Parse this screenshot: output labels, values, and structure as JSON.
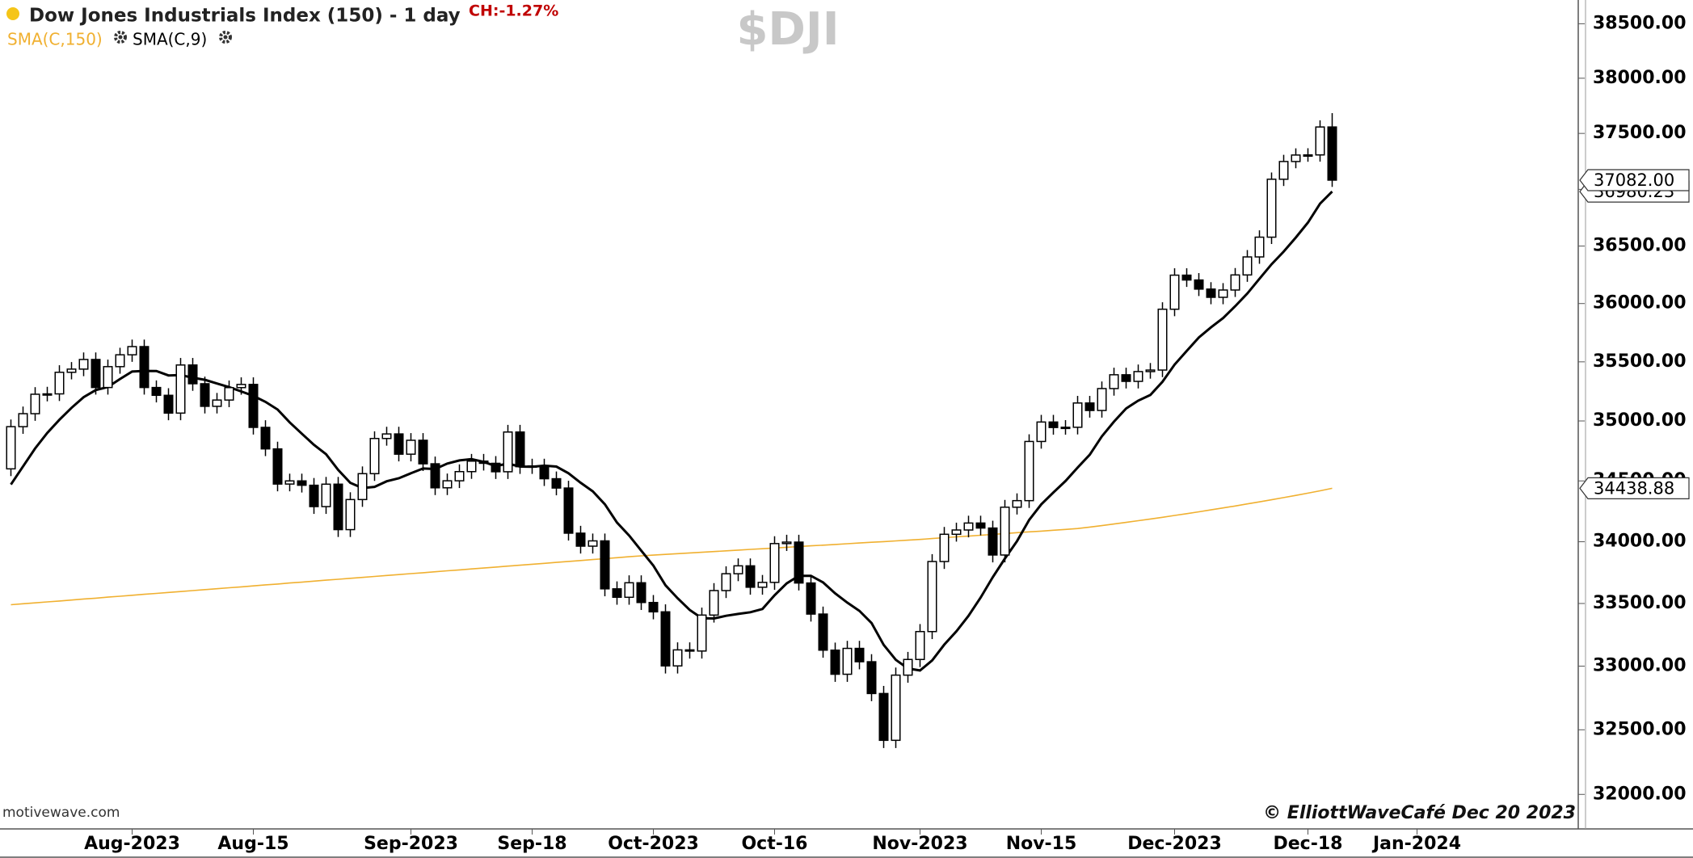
{
  "chart_data": {
    "type": "candlestick",
    "title": "Dow Jones Industrials Index (150) - 1 day",
    "change_label": "CH:-1.27%",
    "symbol": "$DJI",
    "source": "motivewave.com",
    "credit": "© ElliottWaveCafé Dec 20 2023",
    "log_scale": true,
    "up_color": "#ffffff",
    "down_color": "#000000",
    "open": [
      34600,
      34952,
      35061,
      35225,
      35228,
      35411,
      35438,
      35520,
      35282,
      35459,
      35560,
      35630,
      35282,
      35216,
      35066,
      35473,
      35314,
      35123,
      35176,
      35281,
      35308,
      34946,
      34766,
      34474,
      34500,
      34464,
      34288,
      34473,
      34099,
      34346,
      34560,
      34853,
      34891,
      34722,
      34838,
      34642,
      34443,
      34501,
      34577,
      34664,
      34646,
      34576,
      34907,
      34618,
      34624,
      34518,
      34441,
      34070,
      33964,
      34007,
      33618,
      33550,
      33667,
      33508,
      33433,
      33002,
      33129,
      33120,
      33407,
      33604,
      33740,
      33804,
      33631,
      33670,
      33985,
      33997,
      33665,
      33415,
      33127,
      32936,
      33141,
      33035,
      32784,
      32418,
      32929,
      33053,
      33275,
      33839,
      34061,
      34096,
      34153,
      34112,
      33892,
      34283,
      34337,
      34828,
      34991,
      34945,
      34947,
      35151,
      35088,
      35273,
      35390,
      35334,
      35417,
      35430,
      35951,
      36246,
      36204,
      36125,
      36054,
      36117,
      36248,
      36405,
      36578,
      37090,
      37248,
      37306,
      37307,
      37558
    ],
    "high": [
      35012,
      35121,
      35285,
      35288,
      35471,
      35498,
      35580,
      35580,
      35519,
      35620,
      35690,
      35690,
      35342,
      35276,
      35533,
      35533,
      35374,
      35236,
      35341,
      35368,
      35368,
      35006,
      34826,
      34560,
      34560,
      34524,
      34533,
      34533,
      34406,
      34620,
      34913,
      34951,
      34951,
      34898,
      34898,
      34702,
      34561,
      34637,
      34724,
      34724,
      34706,
      34967,
      34967,
      34684,
      34684,
      34578,
      34501,
      34130,
      34067,
      34067,
      33678,
      33727,
      33727,
      33568,
      33493,
      33189,
      33189,
      33467,
      33664,
      33800,
      33864,
      33864,
      33730,
      34045,
      34057,
      34057,
      33725,
      33475,
      33187,
      33201,
      33201,
      33095,
      32844,
      32989,
      33113,
      33335,
      33899,
      34121,
      34156,
      34213,
      34213,
      34172,
      34343,
      34397,
      34888,
      35051,
      35051,
      35007,
      35211,
      35211,
      35333,
      35450,
      35450,
      35477,
      35490,
      36011,
      36306,
      36306,
      36264,
      36185,
      36177,
      36308,
      36465,
      36638,
      37150,
      37308,
      37366,
      37367,
      37618,
      37683
    ],
    "low": [
      34540,
      34892,
      35001,
      35165,
      35168,
      35351,
      35378,
      35222,
      35222,
      35399,
      35500,
      35222,
      35156,
      35006,
      35006,
      35254,
      35063,
      35063,
      35116,
      35221,
      34886,
      34706,
      34414,
      34414,
      34404,
      34228,
      34228,
      34039,
      34039,
      34286,
      34500,
      34793,
      34662,
      34662,
      34582,
      34383,
      34383,
      34441,
      34517,
      34586,
      34516,
      34516,
      34558,
      34558,
      34458,
      34381,
      34010,
      33904,
      33904,
      33558,
      33490,
      33490,
      33448,
      33373,
      32942,
      32942,
      33060,
      33060,
      33347,
      33544,
      33680,
      33571,
      33571,
      33610,
      33925,
      33605,
      33355,
      33067,
      32876,
      32876,
      32975,
      32724,
      32358,
      32358,
      32869,
      32993,
      33215,
      33779,
      34001,
      34036,
      34052,
      33832,
      33832,
      34223,
      34277,
      34768,
      34885,
      34885,
      34887,
      35028,
      35028,
      35213,
      35274,
      35274,
      35357,
      35370,
      35891,
      36144,
      36065,
      35994,
      35994,
      36057,
      36188,
      36345,
      36518,
      37030,
      37188,
      37246,
      37247,
      37022
    ],
    "close": [
      34952,
      35061,
      35225,
      35228,
      35411,
      35438,
      35520,
      35282,
      35459,
      35560,
      35630,
      35282,
      35216,
      35066,
      35473,
      35314,
      35123,
      35176,
      35281,
      35308,
      34946,
      34766,
      34474,
      34500,
      34464,
      34288,
      34473,
      34099,
      34346,
      34560,
      34853,
      34891,
      34722,
      34838,
      34642,
      34443,
      34501,
      34577,
      34664,
      34646,
      34576,
      34907,
      34618,
      34624,
      34518,
      34441,
      34070,
      33964,
      34007,
      33618,
      33550,
      33667,
      33508,
      33433,
      33002,
      33129,
      33120,
      33407,
      33604,
      33740,
      33804,
      33631,
      33670,
      33985,
      33997,
      33665,
      33415,
      33127,
      32936,
      33141,
      33035,
      32784,
      32418,
      32929,
      33053,
      33275,
      33839,
      34061,
      34096,
      34153,
      34112,
      33892,
      34283,
      34337,
      34828,
      34991,
      34945,
      34947,
      35151,
      35088,
      35273,
      35390,
      35334,
      35417,
      35430,
      35951,
      36246,
      36204,
      36125,
      36054,
      36117,
      36248,
      36405,
      36578,
      37090,
      37248,
      37306,
      37307,
      37558,
      37082
    ],
    "series": [
      {
        "name": "SMA(C,150)",
        "color": "#f0b030",
        "values": [
          33490,
          33498,
          33505,
          33513,
          33520,
          33528,
          33536,
          33543,
          33551,
          33558,
          33566,
          33574,
          33581,
          33589,
          33596,
          33604,
          33612,
          33619,
          33627,
          33634,
          33642,
          33650,
          33657,
          33665,
          33672,
          33680,
          33688,
          33695,
          33703,
          33710,
          33718,
          33726,
          33733,
          33741,
          33748,
          33756,
          33764,
          33771,
          33779,
          33786,
          33794,
          33802,
          33809,
          33817,
          33824,
          33832,
          33840,
          33847,
          33855,
          33862,
          33870,
          33878,
          33885,
          33891,
          33897,
          33903,
          33909,
          33914,
          33920,
          33926,
          33932,
          33938,
          33943,
          33949,
          33955,
          33961,
          33967,
          33972,
          33978,
          33984,
          33990,
          33996,
          34001,
          34007,
          34013,
          34019,
          34026,
          34033,
          34040,
          34046,
          34053,
          34060,
          34067,
          34074,
          34081,
          34087,
          34094,
          34101,
          34108,
          34120,
          34132,
          34145,
          34158,
          34172,
          34186,
          34200,
          34215,
          34230,
          34245,
          34261,
          34277,
          34293,
          34310,
          34327,
          34344,
          34362,
          34380,
          34399,
          34418,
          34438.88
        ]
      },
      {
        "name": "SMA(C,9)",
        "color": "#000000",
        "values": [
          34470,
          34620,
          34770,
          34900,
          35010,
          35110,
          35200,
          35260,
          35286,
          35354,
          35417,
          35423,
          35422,
          35384,
          35388,
          35365,
          35347,
          35316,
          35285,
          35249,
          35211,
          35161,
          35096,
          34988,
          34893,
          34800,
          34722,
          34591,
          34484,
          34441,
          34451,
          34497,
          34522,
          34563,
          34603,
          34599,
          34644,
          34670,
          34681,
          34658,
          34623,
          34644,
          34619,
          34617,
          34626,
          34619,
          34563,
          34485,
          34414,
          34307,
          34157,
          34051,
          33927,
          33806,
          33647,
          33542,
          33448,
          33382,
          33380,
          33401,
          33416,
          33430,
          33456,
          33566,
          33662,
          33723,
          33723,
          33670,
          33581,
          33507,
          33441,
          33343,
          33169,
          33050,
          32982,
          32966,
          33046,
          33171,
          33277,
          33401,
          33548,
          33712,
          33863,
          34005,
          34178,
          34306,
          34404,
          34499,
          34610,
          34718,
          34871,
          34994,
          35105,
          35171,
          35219,
          35331,
          35476,
          35593,
          35708,
          35795,
          35875,
          35977,
          36087,
          36214,
          36341,
          36452,
          36575,
          36706,
          36873,
          36980.23
        ]
      }
    ],
    "xlim": [
      -0.9,
      129.3
    ],
    "xticks": [
      {
        "value": 10,
        "label": "Aug-2023"
      },
      {
        "value": 20,
        "label": "Aug-15"
      },
      {
        "value": 33,
        "label": "Sep-2023"
      },
      {
        "value": 43,
        "label": "Sep-18"
      },
      {
        "value": 53,
        "label": "Oct-2023"
      },
      {
        "value": 63,
        "label": "Oct-16"
      },
      {
        "value": 75,
        "label": "Nov-2023"
      },
      {
        "value": 85,
        "label": "Nov-15"
      },
      {
        "value": 96,
        "label": "Dec-2023"
      },
      {
        "value": 107,
        "label": "Dec-18"
      },
      {
        "value": 116,
        "label": "Jan-2024"
      }
    ],
    "ylim": [
      31736,
      38720
    ],
    "yticks": [
      {
        "value": 32000,
        "label": "32000.00"
      },
      {
        "value": 32500,
        "label": "32500.00"
      },
      {
        "value": 33000,
        "label": "33000.00"
      },
      {
        "value": 33500,
        "label": "33500.00"
      },
      {
        "value": 34000,
        "label": "34000.00"
      },
      {
        "value": 34500,
        "label": "34500.00"
      },
      {
        "value": 35000,
        "label": "35000.00"
      },
      {
        "value": 35500,
        "label": "35500.00"
      },
      {
        "value": 36000,
        "label": "36000.00"
      },
      {
        "value": 36500,
        "label": "36500.00"
      },
      {
        "value": 37000,
        "label": "37000.00"
      },
      {
        "value": 37500,
        "label": "37500.00"
      },
      {
        "value": 38000,
        "label": "38000.00"
      },
      {
        "value": 38500,
        "label": "38500.00"
      }
    ],
    "price_labels": [
      {
        "value": 36980.23,
        "label": "36980.23"
      },
      {
        "value": 37082,
        "label": "37082.00"
      },
      {
        "value": 34438.88,
        "label": "34438.88"
      }
    ]
  }
}
